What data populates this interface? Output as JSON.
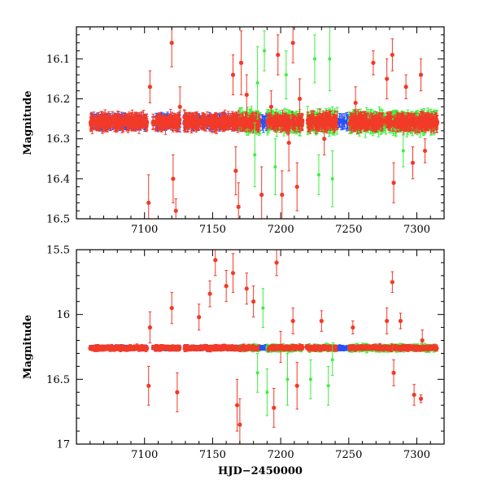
{
  "chart_data": {
    "type": "scatter",
    "xlabel": "HJD−2450000",
    "colors": {
      "red": "#f23a28",
      "green": "#3cf03c",
      "blue": "#2650ff",
      "axis": "#000000"
    },
    "series_names": [
      "red",
      "green",
      "blue"
    ],
    "panels": [
      {
        "ylabel": "Magnitude",
        "xlim": [
          7050,
          7320
        ],
        "ylim": [
          16.5,
          16.02
        ],
        "xticks": [
          7100,
          7150,
          7200,
          7250,
          7300
        ],
        "yticks": [
          16.1,
          16.2,
          16.3,
          16.4,
          16.5
        ],
        "ytick_labels": [
          "16.1",
          "16.2",
          "16.3",
          "16.4",
          "16.5"
        ],
        "baseline": 16.258,
        "scatter": 0.012,
        "outliers": [
          {
            "x": 7103,
            "y": 16.46,
            "err": 0.07,
            "s": "red"
          },
          {
            "x": 7104,
            "y": 16.17,
            "err": 0.04,
            "s": "red"
          },
          {
            "x": 7120,
            "y": 16.06,
            "err": 0.06,
            "s": "red"
          },
          {
            "x": 7121,
            "y": 16.4,
            "err": 0.06,
            "s": "red"
          },
          {
            "x": 7123,
            "y": 16.48,
            "err": 0.03,
            "s": "red"
          },
          {
            "x": 7126,
            "y": 16.22,
            "err": 0.05,
            "s": "red"
          },
          {
            "x": 7165,
            "y": 16.14,
            "err": 0.05,
            "s": "red"
          },
          {
            "x": 7167,
            "y": 16.38,
            "err": 0.06,
            "s": "red"
          },
          {
            "x": 7169,
            "y": 16.47,
            "err": 0.06,
            "s": "red"
          },
          {
            "x": 7171,
            "y": 16.11,
            "err": 0.08,
            "s": "red"
          },
          {
            "x": 7175,
            "y": 16.19,
            "err": 0.05,
            "s": "red"
          },
          {
            "x": 7181,
            "y": 16.34,
            "err": 0.08,
            "s": "green"
          },
          {
            "x": 7183,
            "y": 16.16,
            "err": 0.09,
            "s": "green"
          },
          {
            "x": 7186,
            "y": 16.44,
            "err": 0.07,
            "s": "red"
          },
          {
            "x": 7188,
            "y": 16.08,
            "err": 0.05,
            "s": "green"
          },
          {
            "x": 7193,
            "y": 16.22,
            "err": 0.04,
            "s": "red"
          },
          {
            "x": 7196,
            "y": 16.37,
            "err": 0.07,
            "s": "green"
          },
          {
            "x": 7198,
            "y": 16.09,
            "err": 0.05,
            "s": "red"
          },
          {
            "x": 7201,
            "y": 16.44,
            "err": 0.06,
            "s": "red"
          },
          {
            "x": 7204,
            "y": 16.14,
            "err": 0.06,
            "s": "green"
          },
          {
            "x": 7206,
            "y": 16.31,
            "err": 0.07,
            "s": "red"
          },
          {
            "x": 7209,
            "y": 16.06,
            "err": 0.05,
            "s": "red"
          },
          {
            "x": 7212,
            "y": 16.42,
            "err": 0.06,
            "s": "red"
          },
          {
            "x": 7214,
            "y": 16.2,
            "err": 0.05,
            "s": "red"
          },
          {
            "x": 7225,
            "y": 16.1,
            "err": 0.06,
            "s": "green"
          },
          {
            "x": 7228,
            "y": 16.39,
            "err": 0.05,
            "s": "green"
          },
          {
            "x": 7232,
            "y": 16.3,
            "err": 0.04,
            "s": "red"
          },
          {
            "x": 7236,
            "y": 16.1,
            "err": 0.08,
            "s": "green"
          },
          {
            "x": 7238,
            "y": 16.4,
            "err": 0.07,
            "s": "green"
          },
          {
            "x": 7255,
            "y": 16.21,
            "err": 0.04,
            "s": "red"
          },
          {
            "x": 7268,
            "y": 16.11,
            "err": 0.03,
            "s": "red"
          },
          {
            "x": 7278,
            "y": 16.15,
            "err": 0.05,
            "s": "red"
          },
          {
            "x": 7282,
            "y": 16.09,
            "err": 0.04,
            "s": "red"
          },
          {
            "x": 7283,
            "y": 16.41,
            "err": 0.05,
            "s": "red"
          },
          {
            "x": 7290,
            "y": 16.33,
            "err": 0.04,
            "s": "green"
          },
          {
            "x": 7292,
            "y": 16.17,
            "err": 0.03,
            "s": "red"
          },
          {
            "x": 7297,
            "y": 16.36,
            "err": 0.04,
            "s": "red"
          },
          {
            "x": 7303,
            "y": 16.14,
            "err": 0.04,
            "s": "red"
          },
          {
            "x": 7306,
            "y": 16.33,
            "err": 0.03,
            "s": "red"
          }
        ]
      },
      {
        "ylabel": "Magnitude",
        "xlim": [
          7050,
          7320
        ],
        "ylim": [
          17.0,
          15.5
        ],
        "xticks": [
          7100,
          7150,
          7200,
          7250,
          7300
        ],
        "yticks": [
          15.5,
          16.0,
          16.5,
          17.0
        ],
        "ytick_labels": [
          "15.5",
          "16",
          "16.5",
          "17"
        ],
        "baseline": 16.258,
        "scatter": 0.012,
        "outliers": [
          {
            "x": 7103,
            "y": 16.55,
            "err": 0.15,
            "s": "red"
          },
          {
            "x": 7104,
            "y": 16.1,
            "err": 0.12,
            "s": "red"
          },
          {
            "x": 7120,
            "y": 15.95,
            "err": 0.12,
            "s": "red"
          },
          {
            "x": 7124,
            "y": 16.6,
            "err": 0.15,
            "s": "red"
          },
          {
            "x": 7140,
            "y": 16.02,
            "err": 0.1,
            "s": "red"
          },
          {
            "x": 7148,
            "y": 15.84,
            "err": 0.1,
            "s": "red"
          },
          {
            "x": 7152,
            "y": 15.58,
            "err": 0.12,
            "s": "red"
          },
          {
            "x": 7160,
            "y": 15.78,
            "err": 0.12,
            "s": "red"
          },
          {
            "x": 7165,
            "y": 15.68,
            "err": 0.15,
            "s": "red"
          },
          {
            "x": 7168,
            "y": 16.7,
            "err": 0.2,
            "s": "red"
          },
          {
            "x": 7170,
            "y": 16.85,
            "err": 0.2,
            "s": "red"
          },
          {
            "x": 7175,
            "y": 15.8,
            "err": 0.12,
            "s": "red"
          },
          {
            "x": 7180,
            "y": 15.9,
            "err": 0.12,
            "s": "red"
          },
          {
            "x": 7183,
            "y": 16.45,
            "err": 0.15,
            "s": "green"
          },
          {
            "x": 7187,
            "y": 15.95,
            "err": 0.15,
            "s": "green"
          },
          {
            "x": 7190,
            "y": 16.6,
            "err": 0.18,
            "s": "green"
          },
          {
            "x": 7195,
            "y": 16.72,
            "err": 0.15,
            "s": "red"
          },
          {
            "x": 7197,
            "y": 15.6,
            "err": 0.1,
            "s": "red"
          },
          {
            "x": 7200,
            "y": 16.25,
            "err": 0.12,
            "s": "red"
          },
          {
            "x": 7205,
            "y": 16.5,
            "err": 0.2,
            "s": "green"
          },
          {
            "x": 7209,
            "y": 16.05,
            "err": 0.1,
            "s": "red"
          },
          {
            "x": 7212,
            "y": 16.55,
            "err": 0.18,
            "s": "red"
          },
          {
            "x": 7222,
            "y": 16.5,
            "err": 0.15,
            "s": "green"
          },
          {
            "x": 7230,
            "y": 16.05,
            "err": 0.08,
            "s": "red"
          },
          {
            "x": 7235,
            "y": 16.55,
            "err": 0.15,
            "s": "green"
          },
          {
            "x": 7238,
            "y": 16.35,
            "err": 0.12,
            "s": "green"
          },
          {
            "x": 7253,
            "y": 16.1,
            "err": 0.05,
            "s": "red"
          },
          {
            "x": 7278,
            "y": 16.05,
            "err": 0.1,
            "s": "red"
          },
          {
            "x": 7282,
            "y": 15.75,
            "err": 0.08,
            "s": "red"
          },
          {
            "x": 7283,
            "y": 16.45,
            "err": 0.1,
            "s": "red"
          },
          {
            "x": 7288,
            "y": 16.05,
            "err": 0.06,
            "s": "red"
          },
          {
            "x": 7298,
            "y": 16.62,
            "err": 0.08,
            "s": "red"
          },
          {
            "x": 7303,
            "y": 16.65,
            "err": 0.03,
            "s": "red"
          },
          {
            "x": 7304,
            "y": 16.2,
            "err": 0.08,
            "s": "red"
          }
        ]
      }
    ]
  }
}
